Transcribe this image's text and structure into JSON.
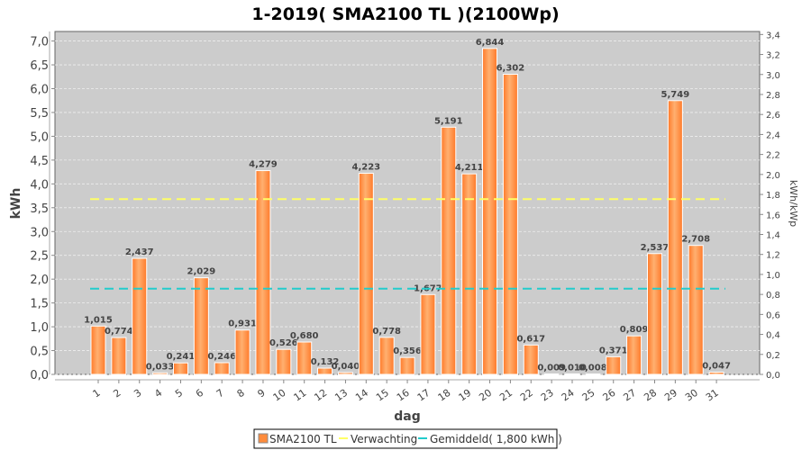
{
  "chart_data": {
    "type": "bar",
    "title": "1-2019( SMA2100 TL )(2100Wp)",
    "xlabel": "dag",
    "ylabel": "kWh",
    "y2label": "kWh/kWp",
    "ylim": [
      0,
      7.2
    ],
    "y2lim": [
      0,
      3.43
    ],
    "yticks": [
      "0,0",
      "0,5",
      "1,0",
      "1,5",
      "2,0",
      "2,5",
      "3,0",
      "3,5",
      "4,0",
      "4,5",
      "5,0",
      "5,5",
      "6,0",
      "6,5",
      "7,0"
    ],
    "y2ticks": [
      "0,0",
      "0,2",
      "0,4",
      "0,6",
      "0,8",
      "1,0",
      "1,2",
      "1,4",
      "1,6",
      "1,8",
      "2,0",
      "2,2",
      "2,4",
      "2,6",
      "2,8",
      "3,0",
      "3,2",
      "3,4"
    ],
    "categories": [
      "1",
      "2",
      "3",
      "4",
      "5",
      "6",
      "7",
      "8",
      "9",
      "10",
      "11",
      "12",
      "13",
      "14",
      "15",
      "16",
      "17",
      "18",
      "19",
      "20",
      "21",
      "22",
      "23",
      "24",
      "25",
      "26",
      "27",
      "28",
      "29",
      "30",
      "31"
    ],
    "values": [
      1.015,
      0.774,
      2.437,
      0.033,
      0.241,
      2.029,
      0.246,
      0.931,
      4.279,
      0.526,
      0.68,
      0.132,
      0.04,
      4.223,
      0.778,
      0.356,
      1.677,
      5.191,
      4.211,
      6.844,
      6.302,
      0.617,
      0.009,
      0.01,
      0.008,
      0.371,
      0.809,
      2.537,
      5.749,
      2.708,
      0.047
    ],
    "labels": [
      "1,015",
      "0,774",
      "2,437",
      "0,033",
      "0,241",
      "2,029",
      "0,246",
      "0,931",
      "4,279",
      "0,526",
      "0,680",
      "0,132",
      "0,040",
      "4,223",
      "0,778",
      "0,356",
      "1,677",
      "5,191",
      "4,211",
      "6,844",
      "6,302",
      "0,617",
      "0,009",
      "0,010",
      "0,008",
      "0,371",
      "0,809",
      "2,537",
      "5,749",
      "2,708",
      "0,047"
    ],
    "expectation": 3.68,
    "average": 1.8,
    "grid": true,
    "legend_position": "bottom",
    "legend": [
      "SMA2100 TL",
      "Verwachting",
      "Gemiddeld( 1,800 kWh )"
    ],
    "colors": {
      "bar": "#ff8c3c",
      "expectation": "#ffff66",
      "average": "#22cccc",
      "plot_bg": "#cccccc"
    }
  }
}
